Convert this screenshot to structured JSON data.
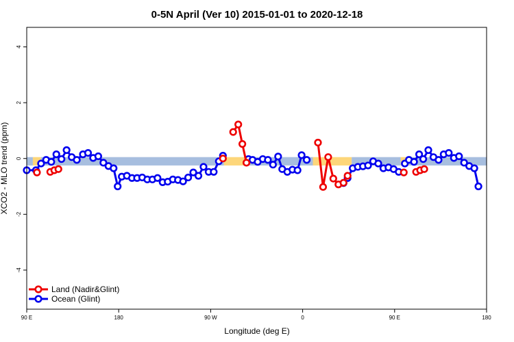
{
  "chart_data": {
    "type": "line",
    "title": "0-5N April (Ver 10)   2015-01-01 to 2020-12-18",
    "xlabel": "Longitude (deg E)",
    "ylabel": "XCO2 - MLO trend (ppm)",
    "xlim": [
      90,
      540
    ],
    "ylim": [
      -5.4,
      4.7
    ],
    "x_ticks": [
      {
        "value": 90,
        "label": "90 E"
      },
      {
        "value": 180,
        "label": "180"
      },
      {
        "value": 270,
        "label": "90 W"
      },
      {
        "value": 360,
        "label": "0"
      },
      {
        "value": 450,
        "label": "90 E"
      },
      {
        "value": 540,
        "label": "180"
      }
    ],
    "y_ticks": [
      {
        "value": -4,
        "label": "-4"
      },
      {
        "value": -2,
        "label": "-2"
      },
      {
        "value": 0,
        "label": "0"
      },
      {
        "value": 2,
        "label": "2"
      },
      {
        "value": 4,
        "label": "4"
      }
    ],
    "legend": {
      "position": "bottom-left",
      "entries": [
        {
          "label": "Land (Nadir&Glint)",
          "color": "#ee0000"
        },
        {
          "label": "Ocean (Glint)",
          "color": "#0000ee"
        }
      ]
    },
    "colors": {
      "land": "#ee0000",
      "ocean": "#0000ee",
      "land_band": "#fdd67a",
      "ocean_band": "#a7bedf"
    },
    "bands": [
      {
        "kind": "ocean",
        "x": [
          90,
          96
        ]
      },
      {
        "kind": "land",
        "x": [
          96,
          104
        ]
      },
      {
        "kind": "ocean",
        "x": [
          104,
          283
        ]
      },
      {
        "kind": "land",
        "x": [
          283,
          305
        ]
      },
      {
        "kind": "ocean",
        "x": [
          305,
          370
        ]
      },
      {
        "kind": "land",
        "x": [
          370,
          408
        ]
      },
      {
        "kind": "ocean",
        "x": [
          408,
          456
        ]
      },
      {
        "kind": "land",
        "x": [
          456,
          464
        ]
      },
      {
        "kind": "ocean",
        "x": [
          464,
          540
        ]
      }
    ],
    "band_y": [
      -0.25,
      0.05
    ],
    "series": [
      {
        "name": "Land (Nadir&Glint)",
        "color": "#ee0000",
        "segments": [
          [
            [
              100,
              -0.5
            ]
          ],
          [
            [
              113,
              -0.48
            ],
            [
              117,
              -0.42
            ],
            [
              121,
              -0.38
            ]
          ],
          [
            [
              282,
              0.0
            ]
          ],
          [
            [
              292,
              0.95
            ],
            [
              297,
              1.22
            ],
            [
              301,
              0.52
            ],
            [
              305,
              -0.15
            ]
          ],
          [
            [
              375,
              0.57
            ],
            [
              380,
              -1.02
            ],
            [
              385,
              0.05
            ],
            [
              390,
              -0.72
            ],
            [
              395,
              -0.93
            ],
            [
              400,
              -0.87
            ],
            [
              404,
              -0.62
            ]
          ],
          [
            [
              459,
              -0.5
            ]
          ],
          [
            [
              471,
              -0.48
            ],
            [
              475,
              -0.42
            ],
            [
              479,
              -0.38
            ]
          ]
        ]
      },
      {
        "name": "Ocean (Glint)",
        "color": "#0000ee",
        "segments": [
          [
            [
              90,
              -0.42
            ],
            [
              99,
              -0.42
            ],
            [
              104,
              -0.18
            ],
            [
              109,
              -0.05
            ],
            [
              114,
              -0.12
            ],
            [
              119,
              0.15
            ],
            [
              124,
              -0.02
            ],
            [
              129,
              0.3
            ],
            [
              134,
              0.05
            ],
            [
              139,
              -0.05
            ],
            [
              145,
              0.15
            ],
            [
              150,
              0.2
            ],
            [
              155,
              0.02
            ],
            [
              160,
              0.08
            ],
            [
              165,
              -0.15
            ],
            [
              170,
              -0.27
            ],
            [
              175,
              -0.35
            ],
            [
              179,
              -1.0
            ],
            [
              183,
              -0.65
            ],
            [
              188,
              -0.62
            ],
            [
              193,
              -0.7
            ],
            [
              198,
              -0.7
            ],
            [
              203,
              -0.68
            ],
            [
              208,
              -0.75
            ],
            [
              213,
              -0.75
            ],
            [
              218,
              -0.7
            ],
            [
              223,
              -0.85
            ],
            [
              228,
              -0.83
            ],
            [
              233,
              -0.75
            ],
            [
              238,
              -0.77
            ],
            [
              243,
              -0.82
            ],
            [
              248,
              -0.68
            ],
            [
              253,
              -0.5
            ],
            [
              258,
              -0.62
            ],
            [
              263,
              -0.3
            ],
            [
              268,
              -0.48
            ],
            [
              273,
              -0.48
            ],
            [
              278,
              -0.1
            ],
            [
              282,
              0.1
            ]
          ],
          [
            [
              307,
              -0.02
            ],
            [
              311,
              -0.05
            ],
            [
              316,
              -0.12
            ],
            [
              321,
              -0.02
            ],
            [
              326,
              -0.05
            ],
            [
              331,
              -0.22
            ],
            [
              336,
              0.07
            ],
            [
              340,
              -0.38
            ],
            [
              345,
              -0.48
            ],
            [
              350,
              -0.4
            ],
            [
              355,
              -0.42
            ],
            [
              359,
              0.12
            ],
            [
              364,
              -0.05
            ]
          ],
          [
            [
              400,
              -0.88
            ],
            [
              404,
              -0.7
            ],
            [
              409,
              -0.35
            ],
            [
              414,
              -0.3
            ],
            [
              419,
              -0.28
            ],
            [
              424,
              -0.25
            ],
            [
              429,
              -0.1
            ],
            [
              434,
              -0.18
            ],
            [
              439,
              -0.35
            ],
            [
              444,
              -0.32
            ],
            [
              449,
              -0.38
            ],
            [
              454,
              -0.48
            ]
          ],
          [
            [
              460,
              -0.18
            ],
            [
              464,
              -0.05
            ],
            [
              469,
              -0.12
            ],
            [
              474,
              0.15
            ],
            [
              478,
              -0.02
            ],
            [
              483,
              0.3
            ],
            [
              488,
              0.05
            ],
            [
              493,
              -0.05
            ],
            [
              498,
              0.15
            ],
            [
              503,
              0.2
            ],
            [
              508,
              0.02
            ],
            [
              513,
              0.08
            ],
            [
              518,
              -0.15
            ],
            [
              523,
              -0.27
            ],
            [
              528,
              -0.35
            ],
            [
              532,
              -1.0
            ]
          ]
        ]
      }
    ]
  }
}
